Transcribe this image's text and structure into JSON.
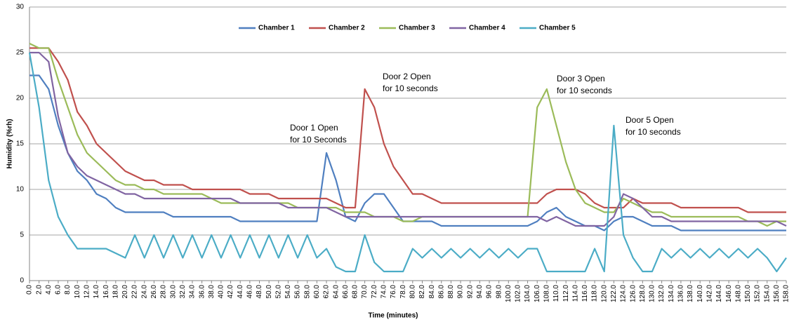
{
  "chart_data": {
    "type": "line",
    "xlabel": "Time (minutes)",
    "ylabel": "Humidity (%rh)",
    "legend": "top",
    "grid": true,
    "ylim": [
      0,
      30
    ],
    "yticks": [
      0,
      5,
      10,
      15,
      20,
      25,
      30
    ],
    "xlim": [
      0,
      158
    ],
    "xticks": [
      {
        "value": 0,
        "label": "0.0"
      },
      {
        "value": 2,
        "label": "2.0"
      },
      {
        "value": 4,
        "label": "4.0"
      },
      {
        "value": 6,
        "label": "6.0"
      },
      {
        "value": 8,
        "label": "8.0"
      },
      {
        "value": 10,
        "label": "10.0"
      },
      {
        "value": 12,
        "label": "12.0"
      },
      {
        "value": 14,
        "label": "14.0"
      },
      {
        "value": 16,
        "label": "16.0"
      },
      {
        "value": 18,
        "label": "18.0"
      },
      {
        "value": 20,
        "label": "20.0"
      },
      {
        "value": 22,
        "label": "22.0"
      },
      {
        "value": 24,
        "label": "24.0"
      },
      {
        "value": 26,
        "label": "26.0"
      },
      {
        "value": 28,
        "label": "28.0"
      },
      {
        "value": 30,
        "label": "30.0"
      },
      {
        "value": 32,
        "label": "32.0"
      },
      {
        "value": 34,
        "label": "34.0"
      },
      {
        "value": 36,
        "label": "36.0"
      },
      {
        "value": 38,
        "label": "38.0"
      },
      {
        "value": 40,
        "label": "40.0"
      },
      {
        "value": 42,
        "label": "42.0"
      },
      {
        "value": 44,
        "label": "44.0"
      },
      {
        "value": 46,
        "label": "46.0"
      },
      {
        "value": 48,
        "label": "48.0"
      },
      {
        "value": 50,
        "label": "50.0"
      },
      {
        "value": 52,
        "label": "52.0"
      },
      {
        "value": 54,
        "label": "54.0"
      },
      {
        "value": 56,
        "label": "56.0"
      },
      {
        "value": 58,
        "label": "58.0"
      },
      {
        "value": 60,
        "label": "60.0"
      },
      {
        "value": 62,
        "label": "62.0"
      },
      {
        "value": 64,
        "label": "64.0"
      },
      {
        "value": 66,
        "label": "66.0"
      },
      {
        "value": 68,
        "label": "68.0"
      },
      {
        "value": 70,
        "label": "70.0"
      },
      {
        "value": 72,
        "label": "72.0"
      },
      {
        "value": 74,
        "label": "74.0"
      },
      {
        "value": 76,
        "label": "76.0"
      },
      {
        "value": 78,
        "label": "78.0"
      },
      {
        "value": 80,
        "label": "80.0"
      },
      {
        "value": 82,
        "label": "82.0"
      },
      {
        "value": 84,
        "label": "84.0"
      },
      {
        "value": 86,
        "label": "86.0"
      },
      {
        "value": 88,
        "label": "88.0"
      },
      {
        "value": 90,
        "label": "90.0"
      },
      {
        "value": 92,
        "label": "92.0"
      },
      {
        "value": 94,
        "label": "94.0"
      },
      {
        "value": 96,
        "label": "96.0"
      },
      {
        "value": 98,
        "label": "98.0"
      },
      {
        "value": 100,
        "label": "100.0"
      },
      {
        "value": 102,
        "label": "102.0"
      },
      {
        "value": 104,
        "label": "104.0"
      },
      {
        "value": 106,
        "label": "106.0"
      },
      {
        "value": 108,
        "label": "108.0"
      },
      {
        "value": 110,
        "label": "110.0"
      },
      {
        "value": 112,
        "label": "112.0"
      },
      {
        "value": 114,
        "label": "114.0"
      },
      {
        "value": 116,
        "label": "116.0"
      },
      {
        "value": 118,
        "label": "118.0"
      },
      {
        "value": 120,
        "label": "120.0"
      },
      {
        "value": 122,
        "label": "122.0"
      },
      {
        "value": 124,
        "label": "124.0"
      },
      {
        "value": 126,
        "label": "126.0"
      },
      {
        "value": 128,
        "label": "128.0"
      },
      {
        "value": 130,
        "label": "130.0"
      },
      {
        "value": 132,
        "label": "132.0"
      },
      {
        "value": 134,
        "label": "134.0"
      },
      {
        "value": 136,
        "label": "136.0"
      },
      {
        "value": 138,
        "label": "138.0"
      },
      {
        "value": 140,
        "label": "140.0"
      },
      {
        "value": 142,
        "label": "142.0"
      },
      {
        "value": 144,
        "label": "144.0"
      },
      {
        "value": 146,
        "label": "146.0"
      },
      {
        "value": 148,
        "label": "148.0"
      },
      {
        "value": 150,
        "label": "150.0"
      },
      {
        "value": 152,
        "label": "152.0"
      },
      {
        "value": 154,
        "label": "154.0"
      },
      {
        "value": 156,
        "label": "156.0"
      },
      {
        "value": 158,
        "label": "158.0"
      }
    ],
    "x": [
      0,
      2,
      4,
      6,
      8,
      10,
      12,
      14,
      16,
      18,
      20,
      22,
      24,
      26,
      28,
      30,
      32,
      34,
      36,
      38,
      40,
      42,
      44,
      46,
      48,
      50,
      52,
      54,
      56,
      58,
      60,
      62,
      64,
      66,
      68,
      70,
      72,
      74,
      76,
      78,
      80,
      82,
      84,
      86,
      88,
      90,
      92,
      94,
      96,
      98,
      100,
      102,
      104,
      106,
      108,
      110,
      112,
      114,
      116,
      118,
      120,
      122,
      124,
      126,
      128,
      130,
      132,
      134,
      136,
      138,
      140,
      142,
      144,
      146,
      148,
      150,
      152,
      154,
      156,
      158
    ],
    "series": [
      {
        "name": "Chamber 1",
        "color": "#4f7fc0",
        "values": [
          22.5,
          22.5,
          21,
          17,
          14,
          12,
          11,
          9.5,
          9,
          8,
          7.5,
          7.5,
          7.5,
          7.5,
          7.5,
          7,
          7,
          7,
          7,
          7,
          7,
          7,
          6.5,
          6.5,
          6.5,
          6.5,
          6.5,
          6.5,
          6.5,
          6.5,
          6.5,
          14,
          11,
          7,
          6.5,
          8.5,
          9.5,
          9.5,
          8,
          6.5,
          6.5,
          6.5,
          6.5,
          6,
          6,
          6,
          6,
          6,
          6,
          6,
          6,
          6,
          6,
          6.5,
          7.5,
          8,
          7,
          6.5,
          6,
          6,
          5.5,
          6.5,
          7,
          7,
          6.5,
          6,
          6,
          6,
          5.5,
          5.5,
          5.5,
          5.5,
          5.5,
          5.5,
          5.5,
          5.5,
          5.5,
          5.5,
          5.5,
          5.5
        ]
      },
      {
        "name": "Chamber 2",
        "color": "#c0504d",
        "values": [
          25.5,
          25.5,
          25.5,
          24,
          22,
          18.5,
          17,
          15,
          14,
          13,
          12,
          11.5,
          11,
          11,
          10.5,
          10.5,
          10.5,
          10,
          10,
          10,
          10,
          10,
          10,
          9.5,
          9.5,
          9.5,
          9,
          9,
          9,
          9,
          9,
          9,
          8.5,
          8,
          8,
          21,
          19,
          15,
          12.5,
          11,
          9.5,
          9.5,
          9,
          8.5,
          8.5,
          8.5,
          8.5,
          8.5,
          8.5,
          8.5,
          8.5,
          8.5,
          8.5,
          8.5,
          9.5,
          10,
          10,
          10,
          9.5,
          8.5,
          8,
          8,
          8,
          9,
          8.5,
          8.5,
          8.5,
          8.5,
          8,
          8,
          8,
          8,
          8,
          8,
          8,
          7.5,
          7.5,
          7.5,
          7.5,
          7.5
        ]
      },
      {
        "name": "Chamber 3",
        "color": "#9bbb59",
        "values": [
          26,
          25.5,
          25.5,
          22,
          19,
          16,
          14,
          13,
          12,
          11,
          10.5,
          10.5,
          10,
          10,
          9.5,
          9.5,
          9.5,
          9.5,
          9.5,
          9,
          8.5,
          8.5,
          8.5,
          8.5,
          8.5,
          8.5,
          8.5,
          8.5,
          8,
          8,
          8,
          8,
          8,
          7.5,
          7.5,
          7.5,
          7,
          7,
          7,
          6.5,
          6.5,
          7,
          7,
          7,
          7,
          7,
          7,
          7,
          7,
          7,
          7,
          7,
          7,
          19,
          21,
          17,
          13,
          10,
          8.5,
          8,
          7.5,
          7.5,
          9,
          8.5,
          8,
          7.5,
          7.5,
          7,
          7,
          7,
          7,
          7,
          7,
          7,
          7,
          6.5,
          6.5,
          6,
          6.5,
          6.5
        ]
      },
      {
        "name": "Chamber 4",
        "color": "#8064a2",
        "values": [
          25,
          25,
          24,
          18,
          14,
          12.5,
          11.5,
          11,
          10.5,
          10,
          9.5,
          9.5,
          9,
          9,
          9,
          9,
          9,
          9,
          9,
          9,
          9,
          9,
          8.5,
          8.5,
          8.5,
          8.5,
          8.5,
          8,
          8,
          8,
          8,
          8,
          7.5,
          7,
          7,
          7,
          7,
          7,
          7,
          7,
          7,
          7,
          7,
          7,
          7,
          7,
          7,
          7,
          7,
          7,
          7,
          7,
          7,
          7,
          6.5,
          7,
          6.5,
          6,
          6,
          6,
          6,
          7,
          9.5,
          9,
          8,
          7,
          7,
          6.5,
          6.5,
          6.5,
          6.5,
          6.5,
          6.5,
          6.5,
          6.5,
          6.5,
          6.5,
          6.5,
          6.5,
          6
        ]
      },
      {
        "name": "Chamber 5",
        "color": "#4bacc6",
        "values": [
          25,
          19,
          11,
          7,
          5,
          3.5,
          3.5,
          3.5,
          3.5,
          3,
          2.5,
          5,
          2.5,
          5,
          2.5,
          5,
          2.5,
          5,
          2.5,
          5,
          2.5,
          5,
          2.5,
          5,
          2.5,
          5,
          2.5,
          5,
          2.5,
          5,
          2.5,
          3.5,
          1.5,
          1,
          1,
          5,
          2,
          1,
          1,
          1,
          3.5,
          2.5,
          3.5,
          2.5,
          3.5,
          2.5,
          3.5,
          2.5,
          3.5,
          2.5,
          3.5,
          2.5,
          3.5,
          3.5,
          1,
          1,
          1,
          1,
          1,
          3.5,
          1,
          17,
          5,
          2.5,
          1,
          1,
          3.5,
          2.5,
          3.5,
          2.5,
          3.5,
          2.5,
          3.5,
          2.5,
          3.5,
          2.5,
          3.5,
          2.5,
          1,
          2.5
        ]
      }
    ],
    "annotations": [
      [
        "Door 1 Open",
        "for 10 Seconds"
      ],
      [
        "Door 2 Open",
        "for 10 seconds"
      ],
      [
        "Door 3 Open",
        "for 10 seconds"
      ],
      [
        "Door 5 Open",
        "for 10 seconds"
      ]
    ]
  }
}
